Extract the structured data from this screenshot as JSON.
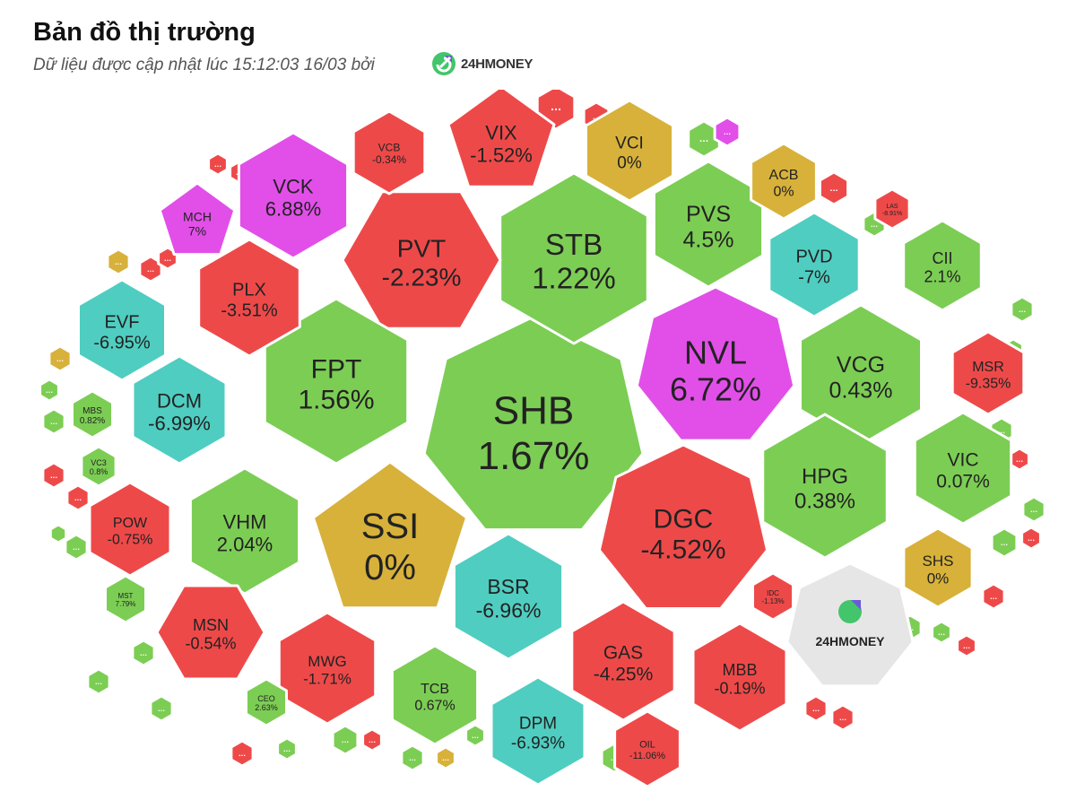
{
  "header": {
    "title": "Bản đồ thị trường",
    "subtitle": "Dữ liệu được cập nhật lúc 15:12:03 16/03 bởi",
    "brand": "24HMONEY"
  },
  "legend_colors": {
    "up": "#7ccd54",
    "down": "#ee4949",
    "flat": "#d7b13a",
    "ceiling": "#e14fe8",
    "floor": "#4fcdc0",
    "neutral": "#e6e6e6"
  },
  "chart_data": {
    "type": "treemap",
    "title": "Bản đồ thị trường",
    "tiles": [
      {
        "symbol": "SHB",
        "change": "1.67%",
        "status": "up"
      },
      {
        "symbol": "NVL",
        "change": "6.72%",
        "status": "ceiling"
      },
      {
        "symbol": "STB",
        "change": "1.22%",
        "status": "up"
      },
      {
        "symbol": "PVT",
        "change": "-2.23%",
        "status": "down"
      },
      {
        "symbol": "FPT",
        "change": "1.56%",
        "status": "up"
      },
      {
        "symbol": "SSI",
        "change": "0%",
        "status": "flat"
      },
      {
        "symbol": "DGC",
        "change": "-4.52%",
        "status": "down"
      },
      {
        "symbol": "BSR",
        "change": "-6.96%",
        "status": "floor"
      },
      {
        "symbol": "VCK",
        "change": "6.88%",
        "status": "ceiling"
      },
      {
        "symbol": "VIX",
        "change": "-1.52%",
        "status": "down"
      },
      {
        "symbol": "PVS",
        "change": "4.5%",
        "status": "up"
      },
      {
        "symbol": "VCG",
        "change": "0.43%",
        "status": "up"
      },
      {
        "symbol": "HPG",
        "change": "0.38%",
        "status": "up"
      },
      {
        "symbol": "PLX",
        "change": "-3.51%",
        "status": "down"
      },
      {
        "symbol": "DCM",
        "change": "-6.99%",
        "status": "floor"
      },
      {
        "symbol": "VHM",
        "change": "2.04%",
        "status": "up"
      },
      {
        "symbol": "EVF",
        "change": "-6.95%",
        "status": "floor"
      },
      {
        "symbol": "PVD",
        "change": "-7%",
        "status": "floor"
      },
      {
        "symbol": "VIC",
        "change": "0.07%",
        "status": "up"
      },
      {
        "symbol": "GAS",
        "change": "-4.25%",
        "status": "down"
      },
      {
        "symbol": "DPM",
        "change": "-6.93%",
        "status": "floor"
      },
      {
        "symbol": "MWG",
        "change": "-1.71%",
        "status": "down"
      },
      {
        "symbol": "MSN",
        "change": "-0.54%",
        "status": "down"
      },
      {
        "symbol": "MBB",
        "change": "-0.19%",
        "status": "down"
      },
      {
        "symbol": "TCB",
        "change": "0.67%",
        "status": "up"
      },
      {
        "symbol": "VCI",
        "change": "0%",
        "status": "flat"
      },
      {
        "symbol": "CII",
        "change": "2.1%",
        "status": "up"
      },
      {
        "symbol": "MSR",
        "change": "-9.35%",
        "status": "down"
      },
      {
        "symbol": "SHS",
        "change": "0%",
        "status": "flat"
      },
      {
        "symbol": "POW",
        "change": "-0.75%",
        "status": "down"
      },
      {
        "symbol": "MCH",
        "change": "7%",
        "status": "ceiling"
      },
      {
        "symbol": "ACB",
        "change": "0%",
        "status": "flat"
      },
      {
        "symbol": "VCB",
        "change": "-0.34%",
        "status": "down"
      },
      {
        "symbol": "OIL",
        "change": "-11.06%",
        "status": "down"
      },
      {
        "symbol": "MBS",
        "change": "0.82%",
        "status": "up"
      },
      {
        "symbol": "VC3",
        "change": "0.8%",
        "status": "up"
      },
      {
        "symbol": "MST",
        "change": "7.79%",
        "status": "up"
      },
      {
        "symbol": "CEO",
        "change": "2.63%",
        "status": "up"
      },
      {
        "symbol": "IDC",
        "change": "-1.13%",
        "status": "down"
      },
      {
        "symbol": "LAS",
        "change": "-8.91%",
        "status": "down"
      }
    ],
    "minor_tiles": [
      {
        "status": "down"
      },
      {
        "status": "down"
      },
      {
        "status": "up"
      },
      {
        "status": "ceiling"
      },
      {
        "status": "down"
      },
      {
        "status": "flat"
      },
      {
        "status": "down"
      },
      {
        "status": "down"
      },
      {
        "status": "down"
      },
      {
        "status": "down"
      },
      {
        "status": "down"
      },
      {
        "status": "up"
      },
      {
        "status": "flat"
      },
      {
        "status": "up"
      },
      {
        "status": "up"
      },
      {
        "status": "down"
      },
      {
        "status": "down"
      },
      {
        "status": "up"
      },
      {
        "status": "up"
      },
      {
        "status": "up"
      },
      {
        "status": "up"
      },
      {
        "status": "up"
      },
      {
        "status": "down"
      },
      {
        "status": "up"
      },
      {
        "status": "up"
      },
      {
        "status": "down"
      },
      {
        "status": "up"
      },
      {
        "status": "flat"
      },
      {
        "status": "up"
      },
      {
        "status": "up"
      },
      {
        "status": "down"
      },
      {
        "status": "down"
      },
      {
        "status": "up"
      },
      {
        "status": "up"
      },
      {
        "status": "up"
      },
      {
        "status": "down"
      },
      {
        "status": "up"
      },
      {
        "status": "down"
      },
      {
        "status": "up"
      },
      {
        "status": "down"
      },
      {
        "status": "down"
      },
      {
        "status": "up"
      },
      {
        "status": "up"
      }
    ],
    "minor_label": "...",
    "watermark": "24HMONEY"
  }
}
